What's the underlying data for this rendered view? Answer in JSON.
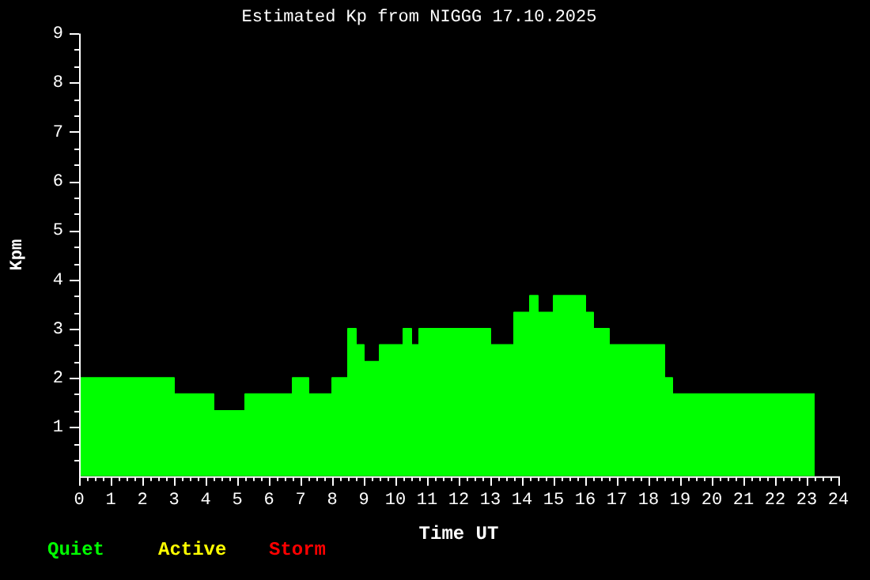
{
  "chart_data": {
    "type": "area",
    "title": "Estimated Kp from NIGGG 17.10.2025",
    "xlabel": "Time UT",
    "ylabel": "Kpm",
    "x": [
      0,
      3,
      3,
      4.25,
      4.25,
      5.25,
      5.25,
      6.75,
      6.75,
      7.25,
      7.25,
      8,
      8,
      8.5,
      8.5,
      8.75,
      8.75,
      9,
      9,
      9.5,
      9.5,
      10.25,
      10.25,
      10.5,
      10.5,
      10.75,
      10.75,
      13,
      13,
      13.75,
      13.75,
      14.25,
      14.25,
      14.5,
      14.5,
      15,
      15,
      16,
      16,
      16.25,
      16.25,
      16.75,
      16.75,
      18.5,
      18.5,
      18.75,
      18.75,
      23.25
    ],
    "series": [
      {
        "name": "Quiet",
        "color": "#00ff00",
        "values": [
          2,
          2,
          1.67,
          1.67,
          1.33,
          1.33,
          1.67,
          1.67,
          2,
          2,
          1.67,
          1.67,
          2,
          2,
          3,
          3,
          2.67,
          2.67,
          2.33,
          2.33,
          2.67,
          2.67,
          3,
          3,
          2.67,
          2.67,
          3,
          3,
          2.67,
          2.67,
          3.33,
          3.33,
          3.67,
          3.67,
          3.33,
          3.33,
          3.67,
          3.67,
          3.33,
          3.33,
          3,
          3,
          2.67,
          2.67,
          2,
          2,
          1.67,
          1.67
        ]
      },
      {
        "name": "Active",
        "color": "#ffff00",
        "values": [
          null,
          null,
          null,
          null,
          null,
          null,
          null,
          null,
          null,
          null,
          null,
          null,
          null,
          null,
          null,
          null,
          null,
          null,
          null,
          null,
          null,
          null,
          null,
          null,
          null,
          null,
          null,
          null,
          null,
          null,
          null,
          null,
          null,
          null,
          null,
          null,
          null,
          null,
          null,
          null,
          null,
          null,
          null,
          null,
          null,
          null,
          null,
          null
        ]
      },
      {
        "name": "Storm",
        "color": "#ff0000",
        "values": [
          null,
          null,
          null,
          null,
          null,
          null,
          null,
          null,
          null,
          null,
          null,
          null,
          null,
          null,
          null,
          null,
          null,
          null,
          null,
          null,
          null,
          null,
          null,
          null,
          null,
          null,
          null,
          null,
          null,
          null,
          null,
          null,
          null,
          null,
          null,
          null,
          null,
          null,
          null,
          null,
          null,
          null,
          null,
          null,
          null,
          null,
          null,
          null
        ]
      }
    ],
    "xlim": [
      0,
      24
    ],
    "xticks": [
      0,
      {
        "value": 0.25,
        "label": null
      },
      {
        "value": 0.5,
        "label": null
      },
      {
        "value": 0.75,
        "label": null
      },
      1,
      {
        "value": 1.25,
        "label": null
      },
      {
        "value": 1.5,
        "label": null
      },
      {
        "value": 1.75,
        "label": null
      },
      2,
      {
        "value": 2.25,
        "label": null
      },
      {
        "value": 2.5,
        "label": null
      },
      {
        "value": 2.75,
        "label": null
      },
      3,
      {
        "value": 3.25,
        "label": null
      },
      {
        "value": 3.5,
        "label": null
      },
      {
        "value": 3.75,
        "label": null
      },
      4,
      {
        "value": 4.25,
        "label": null
      },
      {
        "value": 4.5,
        "label": null
      },
      {
        "value": 4.75,
        "label": null
      },
      5,
      {
        "value": 5.25,
        "label": null
      },
      {
        "value": 5.5,
        "label": null
      },
      {
        "value": 5.75,
        "label": null
      },
      6,
      {
        "value": 6.25,
        "label": null
      },
      {
        "value": 6.5,
        "label": null
      },
      {
        "value": 6.75,
        "label": null
      },
      7,
      {
        "value": 7.25,
        "label": null
      },
      {
        "value": 7.5,
        "label": null
      },
      {
        "value": 7.75,
        "label": null
      },
      8,
      {
        "value": 8.25,
        "label": null
      },
      {
        "value": 8.5,
        "label": null
      },
      {
        "value": 8.75,
        "label": null
      },
      9,
      {
        "value": 9.25,
        "label": null
      },
      {
        "value": 9.5,
        "label": null
      },
      {
        "value": 9.75,
        "label": null
      },
      10,
      {
        "value": 10.25,
        "label": null
      },
      {
        "value": 10.5,
        "label": null
      },
      {
        "value": 10.75,
        "label": null
      },
      11,
      {
        "value": 11.25,
        "label": null
      },
      {
        "value": 11.5,
        "label": null
      },
      {
        "value": 11.75,
        "label": null
      },
      12,
      {
        "value": 12.25,
        "label": null
      },
      {
        "value": 12.5,
        "label": null
      },
      {
        "value": 12.75,
        "label": null
      },
      13,
      {
        "value": 13.25,
        "label": null
      },
      {
        "value": 13.5,
        "label": null
      },
      {
        "value": 13.75,
        "label": null
      },
      14,
      {
        "value": 14.25,
        "label": null
      },
      {
        "value": 14.5,
        "label": null
      },
      {
        "value": 14.75,
        "label": null
      },
      15,
      {
        "value": 15.25,
        "label": null
      },
      {
        "value": 15.5,
        "label": null
      },
      {
        "value": 15.75,
        "label": null
      },
      16,
      {
        "value": 16.25,
        "label": null
      },
      {
        "value": 16.5,
        "label": null
      },
      {
        "value": 16.75,
        "label": null
      },
      17,
      {
        "value": 17.25,
        "label": null
      },
      {
        "value": 17.5,
        "label": null
      },
      {
        "value": 17.75,
        "label": null
      },
      18,
      {
        "value": 18.25,
        "label": null
      },
      {
        "value": 18.5,
        "label": null
      },
      {
        "value": 18.75,
        "label": null
      },
      19,
      {
        "value": 19.25,
        "label": null
      },
      {
        "value": 19.5,
        "label": null
      },
      {
        "value": 19.75,
        "label": null
      },
      20,
      {
        "value": 20.25,
        "label": null
      },
      {
        "value": 20.5,
        "label": null
      },
      {
        "value": 20.75,
        "label": null
      },
      21,
      {
        "value": 21.25,
        "label": null
      },
      {
        "value": 21.5,
        "label": null
      },
      {
        "value": 21.75,
        "label": null
      },
      22,
      {
        "value": 22.25,
        "label": null
      },
      {
        "value": 22.5,
        "label": null
      },
      {
        "value": 22.75,
        "label": null
      },
      23,
      {
        "value": 23.25,
        "label": null
      },
      {
        "value": 23.5,
        "label": null
      },
      {
        "value": 23.75,
        "label": null
      },
      24
    ],
    "ylim": [
      0,
      9
    ],
    "yticks": [
      {
        "value": 0.33,
        "label": null
      },
      {
        "value": 0.67,
        "label": null
      },
      1,
      {
        "value": 1.33,
        "label": null
      },
      {
        "value": 1.67,
        "label": null
      },
      2,
      {
        "value": 2.33,
        "label": null
      },
      {
        "value": 2.67,
        "label": null
      },
      3,
      {
        "value": 3.33,
        "label": null
      },
      {
        "value": 3.67,
        "label": null
      },
      4,
      {
        "value": 4.33,
        "label": null
      },
      {
        "value": 4.67,
        "label": null
      },
      5,
      {
        "value": 5.33,
        "label": null
      },
      {
        "value": 5.67,
        "label": null
      },
      6,
      {
        "value": 6.33,
        "label": null
      },
      {
        "value": 6.67,
        "label": null
      },
      7,
      {
        "value": 7.33,
        "label": null
      },
      {
        "value": 7.67,
        "label": null
      },
      8,
      {
        "value": 8.33,
        "label": null
      },
      {
        "value": 8.67,
        "label": null
      },
      9
    ]
  }
}
